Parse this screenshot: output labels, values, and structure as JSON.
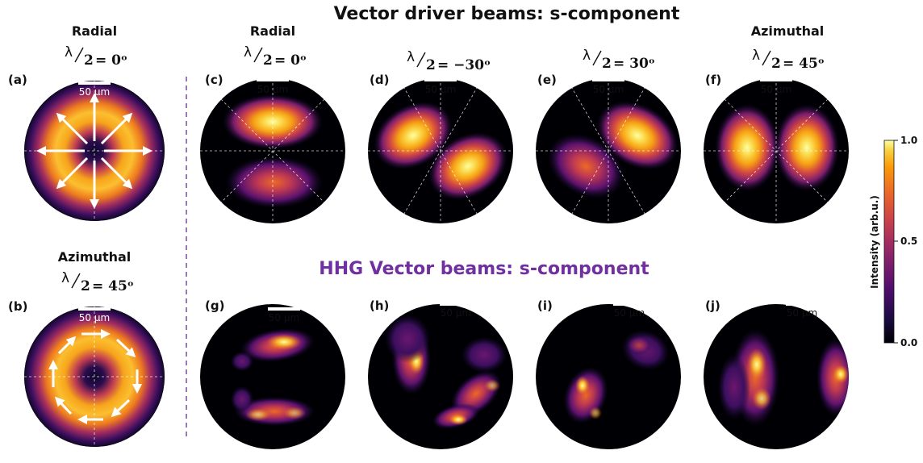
{
  "titles": {
    "driver": "Vector driver beams: s-component",
    "hhg": "HHG Vector beams: s-component"
  },
  "colors": {
    "hhg_title": "#7030a0",
    "divider": "#7a4a9a",
    "accent_peak": "#fde38f"
  },
  "columns": [
    {
      "id": "a",
      "heading": "Radial",
      "angle": "= 0ᵒ"
    },
    {
      "id": "b",
      "heading": "Azimuthal",
      "angle": "= 45ᵒ"
    },
    {
      "id": "c",
      "heading": "Radial",
      "angle": "= 0ᵒ"
    },
    {
      "id": "d",
      "heading": "",
      "angle": "= −30ᵒ"
    },
    {
      "id": "e",
      "heading": "",
      "angle": "= 30ᵒ"
    },
    {
      "id": "f",
      "heading": "Azimuthal",
      "angle": "= 45ᵒ"
    }
  ],
  "lambda_symbol": "λ",
  "lambda_divisor": "2",
  "panels": [
    {
      "label": "(a)",
      "scale": "50 µm"
    },
    {
      "label": "(b)",
      "scale": "50 µm"
    },
    {
      "label": "(c)",
      "scale": "50 µm"
    },
    {
      "label": "(d)",
      "scale": "50 µm"
    },
    {
      "label": "(e)",
      "scale": "50 µm"
    },
    {
      "label": "(f)",
      "scale": "50 µm"
    },
    {
      "label": "(g)",
      "scale": "50 µm"
    },
    {
      "label": "(h)",
      "scale": "50 µm"
    },
    {
      "label": "(i)",
      "scale": "50 µm"
    },
    {
      "label": "(j)",
      "scale": "50 µm"
    }
  ],
  "colorbar": {
    "label": "Intensity (arb.u.)",
    "ticks": [
      "1.0",
      "0.5",
      "0.0"
    ],
    "colormap": "inferno"
  }
}
